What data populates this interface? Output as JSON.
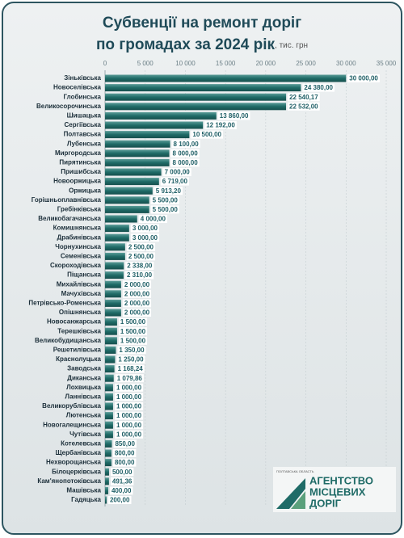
{
  "chart_data": {
    "type": "hbar",
    "title": [
      "Субвенції на ремонт доріг",
      "по громадах за 2024 рік"
    ],
    "unit": ", тис. грн",
    "categories": [
      "Зіньківська",
      "Новоселівська",
      "Глобинська",
      "Великосорочинська",
      "Шишацька",
      "Сергіївська",
      "Полтавська",
      "Лубенська",
      "Миргородська",
      "Пирятинська",
      "Пришибська",
      "Новооржицька",
      "Оржицька",
      "Горішньоплавнівська",
      "Гребінківська",
      "Великобагачанська",
      "Комишнянська",
      "Драбинівська",
      "Чорнухинська",
      "Семенівська",
      "Скороходівська",
      "Піщанська",
      "Михайлівська",
      "Мачухівська",
      "Петрівсько-Роменська",
      "Опішнянська",
      "Новосанжарська",
      "Терешківська",
      "Великобудищанська",
      "Решетилівська",
      "Краснолуцька",
      "Заводська",
      "Диканська",
      "Лохвицька",
      "Ланнівська",
      "Великорублівська",
      "Лютенська",
      "Новогалещинська",
      "Чутівська",
      "Котелевська",
      "Щербанівська",
      "Нехворощанська",
      "Білоцерківська",
      "Кам'янопотоківська",
      "Машівська",
      "Гадяцька"
    ],
    "values": [
      30000,
      24380,
      22540.17,
      22532,
      13860,
      12192,
      10500,
      8100,
      8000,
      8000,
      7000,
      6719,
      5913.2,
      5500,
      5500,
      4000,
      3000,
      3000,
      2500,
      2500,
      2338,
      2310,
      2000,
      2000,
      2000,
      2000,
      1500,
      1500,
      1500,
      1350,
      1250,
      1168.24,
      1079.86,
      1000,
      1000,
      1000,
      1000,
      1000,
      1000,
      850,
      800,
      800,
      500,
      491.36,
      400,
      200
    ],
    "value_labels": [
      "30 000,00",
      "24 380,00",
      "22 540,17",
      "22 532,00",
      "13 860,00",
      "12 192,00",
      "10 500,00",
      "8 100,00",
      "8 000,00",
      "8 000,00",
      "7 000,00",
      "6 719,00",
      "5 913,20",
      "5 500,00",
      "5 500,00",
      "4 000,00",
      "3 000,00",
      "3 000,00",
      "2 500,00",
      "2 500,00",
      "2 338,00",
      "2 310,00",
      "2 000,00",
      "2 000,00",
      "2 000,00",
      "2 000,00",
      "1 500,00",
      "1 500,00",
      "1 500,00",
      "1 350,00",
      "1 250,00",
      "1 168,24",
      "1 079,86",
      "1 000,00",
      "1 000,00",
      "1 000,00",
      "1 000,00",
      "1 000,00",
      "1 000,00",
      "850,00",
      "800,00",
      "800,00",
      "500,00",
      "491,36",
      "400,00",
      "200,00"
    ],
    "xlim": [
      0,
      35000
    ],
    "xticks": [
      0,
      {
        "value": 5000,
        "label": "5 000"
      },
      {
        "value": 10000,
        "label": "10 000"
      },
      {
        "value": 15000,
        "label": "15 000"
      },
      {
        "value": 20000,
        "label": "20 000"
      },
      {
        "value": 25000,
        "label": "25 000"
      },
      {
        "value": 30000,
        "label": "30 000"
      },
      {
        "value": 35000,
        "label": "35 000"
      }
    ],
    "grid": true,
    "logo": [
      "ПОЛТАВСЬКА ОБЛАСТЬ",
      "АГЕНТСТВО",
      "МІСЦЕВИХ",
      "ДОРІГ"
    ]
  }
}
